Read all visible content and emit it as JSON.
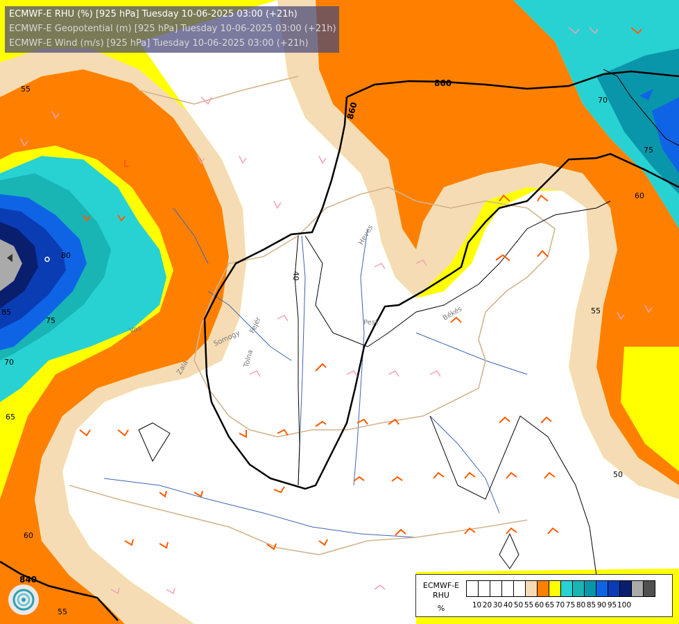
{
  "titles": {
    "line1": "ECMWF-E RHU (%) [925 hPa] Tuesday 10-06-2025 03:00 (+21h)",
    "line2": "ECMWF-E Geopotential (m) [925 hPa] Tuesday 10-06-2025 03:00 (+21h)",
    "line3": "ECMWF-E Wind (m/s) [925 hPa] Tuesday 10-06-2025 03:00 (+21h)"
  },
  "legend": {
    "title_line1": "ECMWF-E",
    "title_line2": "RHU",
    "unit": "%",
    "colors": [
      "#ffffff",
      "#ffffff",
      "#ffffff",
      "#ffffff",
      "#ffffff",
      "#f5dcb4",
      "#ff8000",
      "#ffff00",
      "#28d2d2",
      "#19b4b4",
      "#0a96aa",
      "#0f64e6",
      "#0a3cb4",
      "#0a1e6e",
      "#aaaaaa",
      "#505050"
    ],
    "ticks": [
      "10",
      "20",
      "30",
      "40",
      "50",
      "55",
      "60",
      "65",
      "70",
      "75",
      "80",
      "85",
      "90",
      "95",
      "100"
    ]
  },
  "contour_labels": {
    "geo_860_top": "860",
    "geo_860_left": "860",
    "geo_840": "840",
    "rh_55_tl": "55",
    "rh_55_right": "55",
    "rh_55_bottom": "55",
    "rh_60_tr": "60",
    "rh_60_bl": "60",
    "rh_65": "65",
    "rh_70_tr": "70",
    "rh_70_left": "70",
    "rh_75_tr": "75",
    "rh_75_left": "75",
    "rh_80": "80",
    "rh_85": "85",
    "rh_50": "50",
    "rh_40": "40"
  },
  "place_labels": {
    "heves": "Heves",
    "pest": "Pest",
    "bekes": "Békés",
    "somogy": "Somogy",
    "fejer": "Fejér",
    "tolna": "Tolna",
    "zala": "Zala",
    "vas": "Vas"
  }
}
